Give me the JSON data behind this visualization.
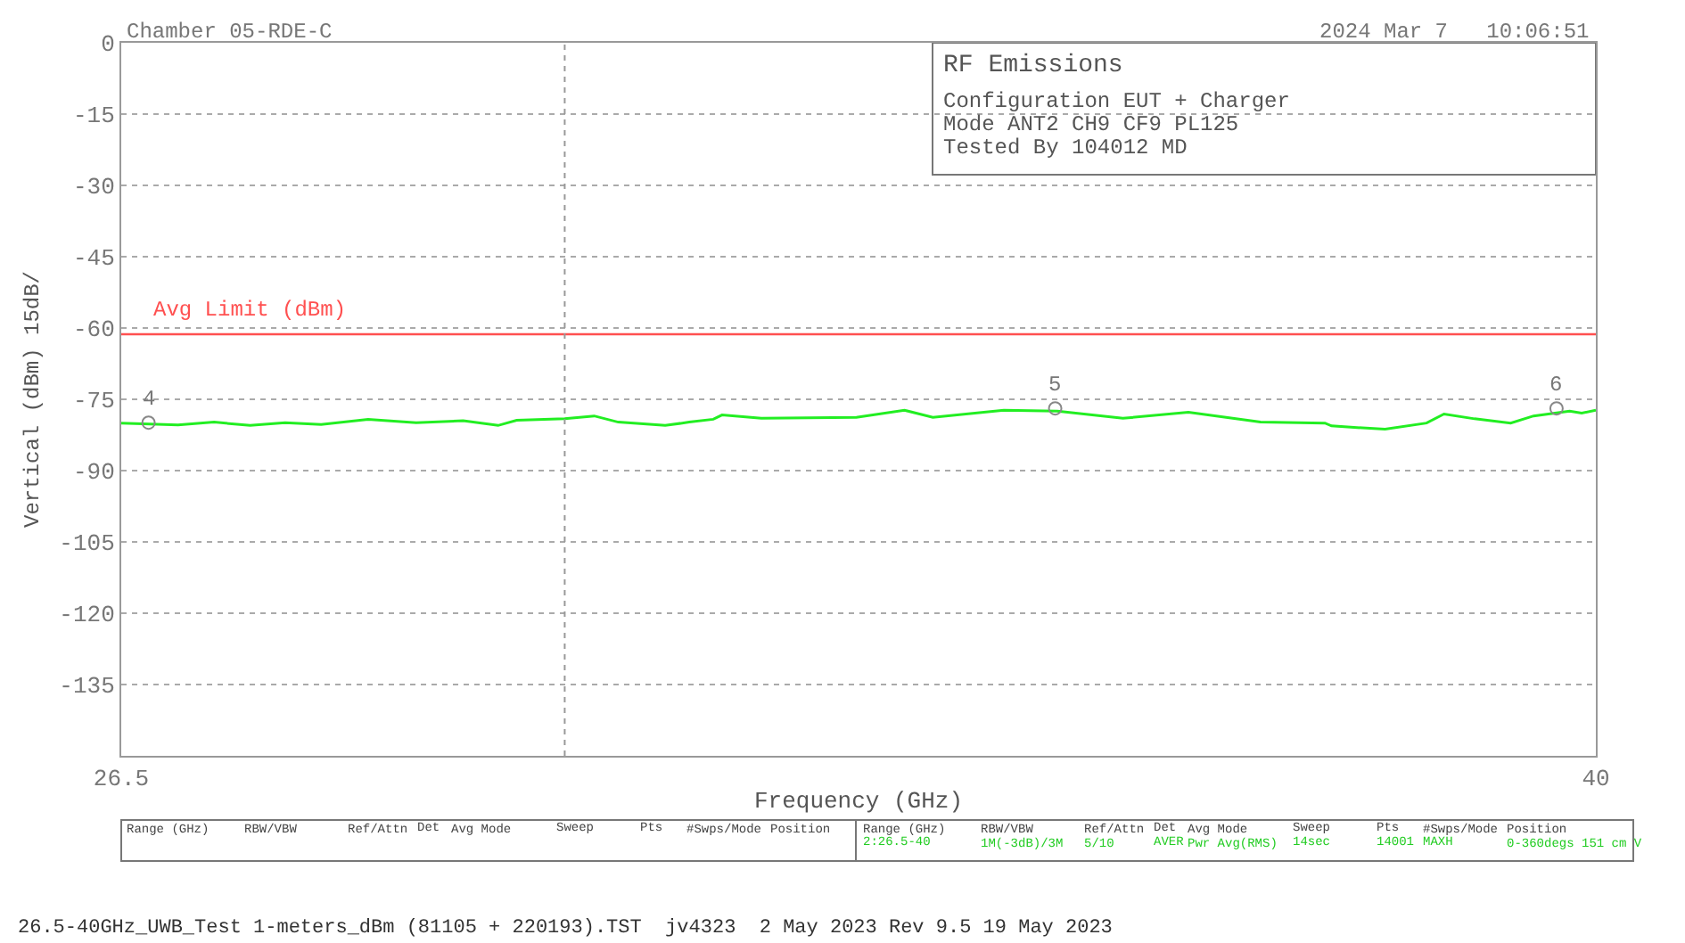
{
  "chart_data": {
    "type": "line",
    "title": "RF Emissions",
    "xlabel": "Frequency (GHz)",
    "ylabel": "Vertical (dBm) 15dB/",
    "xlim": [
      26.5,
      40
    ],
    "xticks": [
      26.5,
      40
    ],
    "ylim": [
      -150,
      0
    ],
    "yticks": [
      0,
      -15,
      -30,
      -45,
      -60,
      -75,
      -90,
      -105,
      -120,
      -135
    ],
    "grid": "y",
    "line_style": "solid",
    "series": [
      {
        "color": "#22ee22",
        "x": [
          26.5,
          27.02,
          27.35,
          27.68,
          28.0,
          28.33,
          28.76,
          29.2,
          29.63,
          29.95,
          30.12,
          30.56,
          30.83,
          31.05,
          31.48,
          31.7,
          31.92,
          32.0,
          32.36,
          33.23,
          33.67,
          33.93,
          34.58,
          35.07,
          35.67,
          36.27,
          36.93,
          37.52,
          37.58,
          38.07,
          38.45,
          38.61,
          38.89,
          39.22,
          39.43,
          39.76,
          39.87,
          40.0
        ],
        "values": [
          -80.0,
          -80.4,
          -79.8,
          -80.5,
          -79.9,
          -80.3,
          -79.2,
          -79.9,
          -79.5,
          -80.5,
          -79.4,
          -79.1,
          -78.5,
          -79.8,
          -80.5,
          -79.8,
          -79.2,
          -78.3,
          -79.0,
          -78.8,
          -77.3,
          -78.8,
          -77.3,
          -77.5,
          -79.0,
          -77.7,
          -79.8,
          -80.0,
          -80.6,
          -81.3,
          -80.0,
          -78.1,
          -79.1,
          -80.0,
          -78.5,
          -77.5,
          -77.9,
          -77.3
        ]
      },
      {
        "type": "scatter",
        "color": "#888888",
        "marker": "circle",
        "x": [
          26.75,
          35.05,
          39.64
        ],
        "values": [
          -79.9,
          -76.9,
          -76.9
        ]
      }
    ],
    "ref_lines": [
      {
        "axis": "y",
        "value": -61.3,
        "label": "Avg Limit (dBm)",
        "color": "#ff5050",
        "line_style": "solid"
      },
      {
        "axis": "x",
        "value": 30.56,
        "color": "#999999",
        "line_style": "dotted"
      }
    ],
    "annotations": [
      {
        "text": "4",
        "x": 26.75,
        "y": -79.9
      },
      {
        "text": "5",
        "x": 35.05,
        "y": -76.9
      },
      {
        "text": "6",
        "x": 39.64,
        "y": -76.9
      },
      "Chamber 05-RDE-C",
      "2024 Mar 7   10:06:51",
      "Configuration EUT + Charger",
      "Mode ANT2 CH9 CF9 PL125",
      "Tested By 104012 MD",
      "26.5-40GHz_UWB_Test 1-meters_dBm (81105 + 220193).TST  jv4323  2 May 2023 Rev 9.5 19 May 2023",
      "Range (GHz)",
      "RBW/VBW",
      "Ref/Attn",
      "Det",
      "Avg Mode",
      "Sweep",
      "Pts",
      "#Swps/Mode",
      "Position",
      "Range (GHz)",
      "RBW/VBW",
      "Ref/Attn",
      "Det",
      "Avg Mode",
      "Sweep",
      "Pts",
      "#Swps/Mode",
      "Position",
      "2:26.5-40",
      "1M(-3dB)/3M",
      "5/10",
      "AVER",
      "Pwr Avg(RMS)",
      "14sec",
      "14001",
      "MAXH",
      "0-360degs 151 cm V"
    ]
  }
}
